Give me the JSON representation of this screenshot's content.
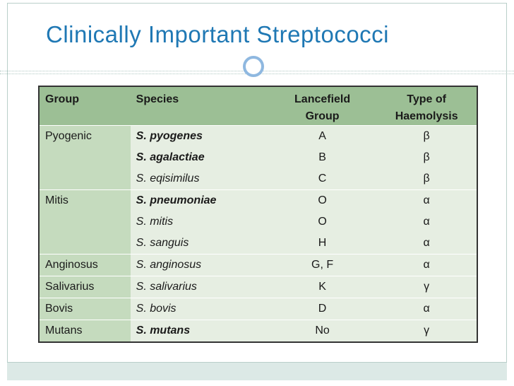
{
  "slide": {
    "title": "Clinically Important Streptococci"
  },
  "table": {
    "headers": {
      "group": "Group",
      "species": "Species",
      "lancefield_line1": "Lancefield",
      "lancefield_line2": "Group",
      "haemolysis_line1": "Type of",
      "haemolysis_line2": "Haemolysis"
    },
    "rows": [
      {
        "group": "Pyogenic",
        "species": [
          {
            "name": "S. pyogenes",
            "bold": true
          },
          {
            "name": "S. agalactiae",
            "bold": true
          },
          {
            "name": "S. eqisimilus",
            "bold": false
          }
        ],
        "lancefield": [
          "A",
          "B",
          "C"
        ],
        "haemolysis": [
          "β",
          "β",
          "β"
        ]
      },
      {
        "group": "Mitis",
        "species": [
          {
            "name": "S. pneumoniae",
            "bold": true
          },
          {
            "name": "S. mitis",
            "bold": false
          },
          {
            "name": "S. sanguis",
            "bold": false
          }
        ],
        "lancefield": [
          "O",
          "O",
          "H"
        ],
        "haemolysis": [
          "α",
          "α",
          "α"
        ]
      },
      {
        "group": "Anginosus",
        "species": [
          {
            "name": "S. anginosus",
            "bold": false
          }
        ],
        "lancefield": [
          "G, F"
        ],
        "haemolysis": [
          "α"
        ]
      },
      {
        "group": "Salivarius",
        "species": [
          {
            "name": "S. salivarius",
            "bold": false
          }
        ],
        "lancefield": [
          "K"
        ],
        "haemolysis": [
          "γ"
        ]
      },
      {
        "group": "Bovis",
        "species": [
          {
            "name": "S. bovis",
            "bold": false
          }
        ],
        "lancefield": [
          "D"
        ],
        "haemolysis": [
          "α"
        ]
      },
      {
        "group": "Mutans",
        "species": [
          {
            "name": "S. mutans",
            "bold": true
          }
        ],
        "lancefield": [
          "No"
        ],
        "haemolysis": [
          "γ"
        ]
      }
    ]
  }
}
